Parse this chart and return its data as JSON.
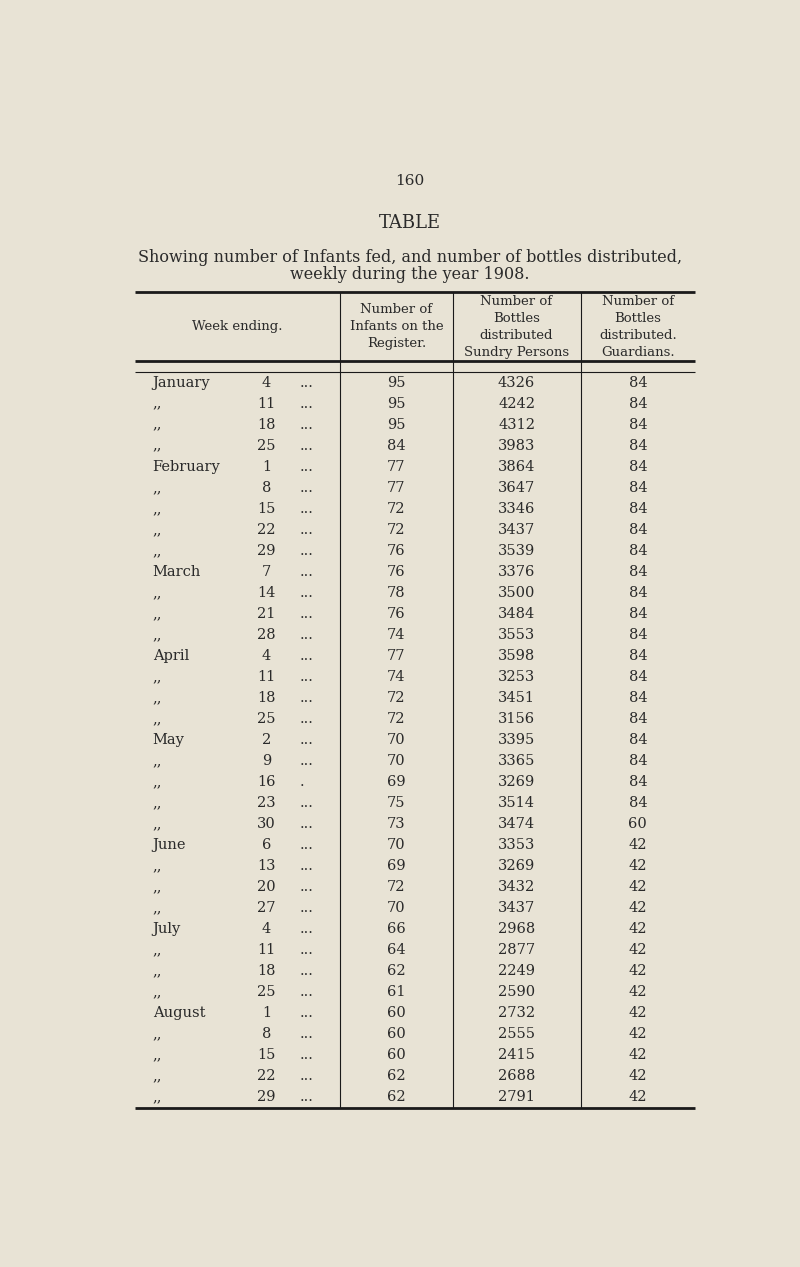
{
  "page_number": "160",
  "title": "TABLE",
  "subtitle_line1": "Showing number of Infants fed, and number of bottles distributed,",
  "subtitle_line2": "weekly during the year 1908.",
  "col_header_texts": [
    "Week ending.",
    "Number of\nInfants on the\nRegister.",
    "Number of\nBottles\ndistributed\nSundry Persons",
    "Number of\nBottles\ndistributed.\nGuardians."
  ],
  "rows": [
    [
      "January",
      "4",
      "...",
      "95",
      "4326",
      "84"
    ],
    [
      ",,",
      "11",
      "...",
      "95",
      "4242",
      "84"
    ],
    [
      ",,",
      "18",
      "...",
      "95",
      "4312",
      "84"
    ],
    [
      ",,",
      "25",
      "...",
      "84",
      "3983",
      "84"
    ],
    [
      "February",
      "1",
      "...",
      "77",
      "3864",
      "84"
    ],
    [
      ",,",
      "8",
      "...",
      "77",
      "3647",
      "84"
    ],
    [
      ",,",
      "15",
      "...",
      "72",
      "3346",
      "84"
    ],
    [
      ",,",
      "22",
      "...",
      "72",
      "3437",
      "84"
    ],
    [
      ",,",
      "29",
      "...",
      "76",
      "3539",
      "84"
    ],
    [
      "March",
      "7",
      "...",
      "76",
      "3376",
      "84"
    ],
    [
      ",,",
      "14",
      "...",
      "78",
      "3500",
      "84"
    ],
    [
      ",,",
      "21",
      "...",
      "76",
      "3484",
      "84"
    ],
    [
      ",,",
      "28",
      "...",
      "74",
      "3553",
      "84"
    ],
    [
      "April",
      "4",
      "...",
      "77",
      "3598",
      "84"
    ],
    [
      ",,",
      "11",
      "...",
      "74",
      "3253",
      "84"
    ],
    [
      ",,",
      "18",
      "...",
      "72",
      "3451",
      "84"
    ],
    [
      ",,",
      "25",
      "...",
      "72",
      "3156",
      "84"
    ],
    [
      "May",
      "2",
      "...",
      "70",
      "3395",
      "84"
    ],
    [
      ",,",
      "9",
      "...",
      "70",
      "3365",
      "84"
    ],
    [
      ",,",
      "16",
      ".",
      "69",
      "3269",
      "84"
    ],
    [
      ",,",
      "23",
      "...",
      "75",
      "3514",
      "84"
    ],
    [
      ",,",
      "30",
      "...",
      "73",
      "3474",
      "60"
    ],
    [
      "June",
      "6",
      "...",
      "70",
      "3353",
      "42"
    ],
    [
      ",,",
      "13",
      "...",
      "69",
      "3269",
      "42"
    ],
    [
      ",,",
      "20",
      "...",
      "72",
      "3432",
      "42"
    ],
    [
      ",,",
      "27",
      "...",
      "70",
      "3437",
      "42"
    ],
    [
      "July",
      "4",
      "...",
      "66",
      "2968",
      "42"
    ],
    [
      ",,",
      "11",
      "...",
      "64",
      "2877",
      "42"
    ],
    [
      ",,",
      "18",
      "...",
      "62",
      "2249",
      "42"
    ],
    [
      ",,",
      "25",
      "...",
      "61",
      "2590",
      "42"
    ],
    [
      "August",
      "1",
      "...",
      "60",
      "2732",
      "42"
    ],
    [
      ",,",
      "8",
      "...",
      "60",
      "2555",
      "42"
    ],
    [
      ",,",
      "15",
      "...",
      "60",
      "2415",
      "42"
    ],
    [
      ",,",
      "22",
      "...",
      "62",
      "2688",
      "42"
    ],
    [
      ",,",
      "29",
      "...",
      "62",
      "2791",
      "42"
    ]
  ],
  "bg_color": "#e8e3d5",
  "text_color": "#2a2a2a",
  "line_color": "#1a1a1a",
  "font_size_page": 11,
  "font_size_title": 13,
  "font_size_subtitle": 11.5,
  "font_size_header": 9.5,
  "font_size_data": 10.5
}
